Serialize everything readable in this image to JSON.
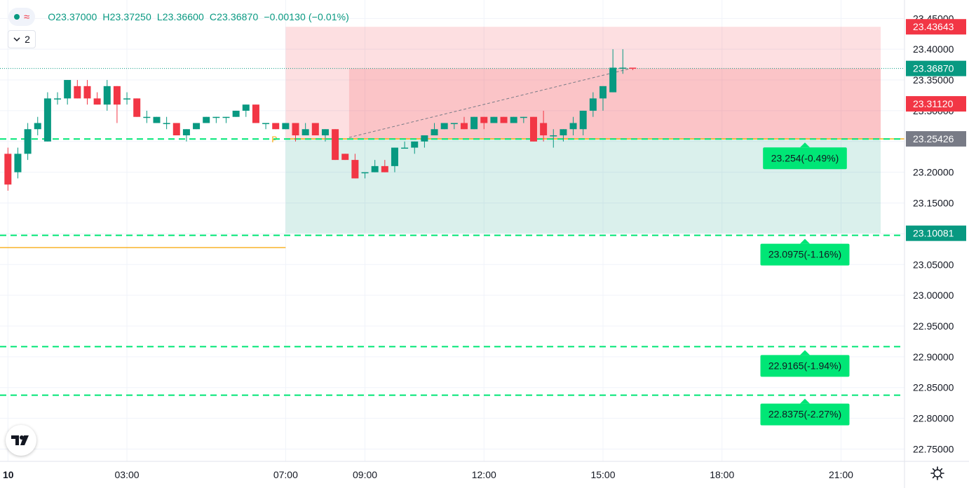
{
  "legend": {
    "open_text": "O23.37000",
    "high_text": "H23.37250",
    "low_text": "L23.36600",
    "close_text": "C23.36870",
    "change_text": "−0.00130 (−0.01%)",
    "indicator_count": "2"
  },
  "icons": {
    "status": "status-dot-icon",
    "wave": "wave-icon",
    "chevron": "chevron-down-icon",
    "logo": "tradingview-logo-icon",
    "settings": "gear-icon"
  },
  "colors": {
    "up": "#089981",
    "down": "#f23645",
    "target_line": "#00e676",
    "target_badge": "#00e676",
    "entry_line": "#f7a600",
    "stop_zone": "#f23645",
    "profit_zone": "#089981",
    "axis_entry_badge": "#787b86",
    "axis_last_badge": "#089981",
    "axis_stop_badge": "#f23645"
  },
  "chart_data": {
    "type": "candlestick",
    "y_axis": {
      "ticks": [
        22.75,
        22.8,
        22.85,
        22.9,
        22.95,
        23.0,
        23.05,
        23.1,
        23.15,
        23.2,
        23.25,
        23.3,
        23.35,
        23.4,
        23.45
      ],
      "tick_labels": [
        "22.75000",
        "22.80000",
        "22.85000",
        "22.90000",
        "22.95000",
        "23.00000",
        "23.05000",
        "23.10000",
        "23.15000",
        "23.20000",
        "23.25000",
        "23.30000",
        "23.35000",
        "23.40000",
        "23.45000"
      ],
      "range": [
        22.73,
        23.48
      ]
    },
    "x_axis": {
      "labels": [
        {
          "label": "10",
          "time": 0
        },
        {
          "label": "03:00",
          "time": 3
        },
        {
          "label": "07:00",
          "time": 7
        },
        {
          "label": "09:00",
          "time": 9
        },
        {
          "label": "12:00",
          "time": 12
        },
        {
          "label": "15:00",
          "time": 15
        },
        {
          "label": "18:00",
          "time": 18
        },
        {
          "label": "21:00",
          "time": 21
        }
      ],
      "range": [
        -0.2,
        22.6
      ]
    },
    "candles": [
      {
        "t": 0.0,
        "o": 23.23,
        "h": 23.24,
        "l": 23.17,
        "c": 23.18
      },
      {
        "t": 0.25,
        "o": 23.2,
        "h": 23.24,
        "l": 23.19,
        "c": 23.23
      },
      {
        "t": 0.5,
        "o": 23.23,
        "h": 23.28,
        "l": 23.22,
        "c": 23.27
      },
      {
        "t": 0.75,
        "o": 23.27,
        "h": 23.29,
        "l": 23.26,
        "c": 23.28
      },
      {
        "t": 1.0,
        "o": 23.25,
        "h": 23.33,
        "l": 23.25,
        "c": 23.32
      },
      {
        "t": 1.25,
        "o": 23.32,
        "h": 23.33,
        "l": 23.31,
        "c": 23.32
      },
      {
        "t": 1.5,
        "o": 23.32,
        "h": 23.35,
        "l": 23.31,
        "c": 23.35
      },
      {
        "t": 1.75,
        "o": 23.34,
        "h": 23.35,
        "l": 23.32,
        "c": 23.32
      },
      {
        "t": 2.0,
        "o": 23.34,
        "h": 23.35,
        "l": 23.31,
        "c": 23.32
      },
      {
        "t": 2.25,
        "o": 23.32,
        "h": 23.33,
        "l": 23.31,
        "c": 23.31
      },
      {
        "t": 2.5,
        "o": 23.31,
        "h": 23.35,
        "l": 23.3,
        "c": 23.34
      },
      {
        "t": 2.75,
        "o": 23.34,
        "h": 23.34,
        "l": 23.28,
        "c": 23.31
      },
      {
        "t": 3.0,
        "o": 23.32,
        "h": 23.33,
        "l": 23.31,
        "c": 23.32
      },
      {
        "t": 3.25,
        "o": 23.32,
        "h": 23.32,
        "l": 23.29,
        "c": 23.29
      },
      {
        "t": 3.5,
        "o": 23.29,
        "h": 23.3,
        "l": 23.28,
        "c": 23.29
      },
      {
        "t": 3.75,
        "o": 23.28,
        "h": 23.29,
        "l": 23.28,
        "c": 23.29
      },
      {
        "t": 4.0,
        "o": 23.28,
        "h": 23.29,
        "l": 23.27,
        "c": 23.28
      },
      {
        "t": 4.25,
        "o": 23.28,
        "h": 23.28,
        "l": 23.26,
        "c": 23.26
      },
      {
        "t": 4.5,
        "o": 23.26,
        "h": 23.27,
        "l": 23.25,
        "c": 23.27
      },
      {
        "t": 4.75,
        "o": 23.27,
        "h": 23.28,
        "l": 23.27,
        "c": 23.28
      },
      {
        "t": 5.0,
        "o": 23.28,
        "h": 23.29,
        "l": 23.28,
        "c": 23.29
      },
      {
        "t": 5.25,
        "o": 23.29,
        "h": 23.29,
        "l": 23.28,
        "c": 23.29
      },
      {
        "t": 5.5,
        "o": 23.29,
        "h": 23.29,
        "l": 23.28,
        "c": 23.29
      },
      {
        "t": 5.75,
        "o": 23.29,
        "h": 23.3,
        "l": 23.29,
        "c": 23.3
      },
      {
        "t": 6.0,
        "o": 23.3,
        "h": 23.31,
        "l": 23.29,
        "c": 23.31
      },
      {
        "t": 6.25,
        "o": 23.31,
        "h": 23.31,
        "l": 23.28,
        "c": 23.28
      },
      {
        "t": 6.5,
        "o": 23.28,
        "h": 23.28,
        "l": 23.27,
        "c": 23.28
      },
      {
        "t": 6.75,
        "o": 23.28,
        "h": 23.28,
        "l": 23.27,
        "c": 23.27
      },
      {
        "t": 7.0,
        "o": 23.27,
        "h": 23.28,
        "l": 23.27,
        "c": 23.28
      },
      {
        "t": 7.25,
        "o": 23.28,
        "h": 23.28,
        "l": 23.25,
        "c": 23.26
      },
      {
        "t": 7.5,
        "o": 23.26,
        "h": 23.28,
        "l": 23.26,
        "c": 23.27
      },
      {
        "t": 7.75,
        "o": 23.28,
        "h": 23.28,
        "l": 23.26,
        "c": 23.26
      },
      {
        "t": 8.0,
        "o": 23.26,
        "h": 23.27,
        "l": 23.25,
        "c": 23.27
      },
      {
        "t": 8.25,
        "o": 23.27,
        "h": 23.27,
        "l": 23.22,
        "c": 23.22
      },
      {
        "t": 8.5,
        "o": 23.23,
        "h": 23.23,
        "l": 23.22,
        "c": 23.22
      },
      {
        "t": 8.75,
        "o": 23.22,
        "h": 23.23,
        "l": 23.19,
        "c": 23.19
      },
      {
        "t": 9.0,
        "o": 23.2,
        "h": 23.2,
        "l": 23.19,
        "c": 23.2
      },
      {
        "t": 9.25,
        "o": 23.2,
        "h": 23.22,
        "l": 23.2,
        "c": 23.21
      },
      {
        "t": 9.5,
        "o": 23.21,
        "h": 23.22,
        "l": 23.2,
        "c": 23.2
      },
      {
        "t": 9.75,
        "o": 23.21,
        "h": 23.24,
        "l": 23.2,
        "c": 23.24
      },
      {
        "t": 10.0,
        "o": 23.24,
        "h": 23.25,
        "l": 23.24,
        "c": 23.24
      },
      {
        "t": 10.25,
        "o": 23.24,
        "h": 23.25,
        "l": 23.23,
        "c": 23.25
      },
      {
        "t": 10.5,
        "o": 23.25,
        "h": 23.26,
        "l": 23.24,
        "c": 23.26
      },
      {
        "t": 10.75,
        "o": 23.26,
        "h": 23.28,
        "l": 23.26,
        "c": 23.27
      },
      {
        "t": 11.0,
        "o": 23.27,
        "h": 23.28,
        "l": 23.27,
        "c": 23.28
      },
      {
        "t": 11.25,
        "o": 23.28,
        "h": 23.28,
        "l": 23.27,
        "c": 23.28
      },
      {
        "t": 11.5,
        "o": 23.28,
        "h": 23.29,
        "l": 23.27,
        "c": 23.27
      },
      {
        "t": 11.75,
        "o": 23.27,
        "h": 23.29,
        "l": 23.27,
        "c": 23.29
      },
      {
        "t": 12.0,
        "o": 23.29,
        "h": 23.29,
        "l": 23.27,
        "c": 23.28
      },
      {
        "t": 12.25,
        "o": 23.28,
        "h": 23.29,
        "l": 23.28,
        "c": 23.29
      },
      {
        "t": 12.5,
        "o": 23.29,
        "h": 23.29,
        "l": 23.28,
        "c": 23.28
      },
      {
        "t": 12.75,
        "o": 23.28,
        "h": 23.29,
        "l": 23.28,
        "c": 23.29
      },
      {
        "t": 13.0,
        "o": 23.29,
        "h": 23.29,
        "l": 23.28,
        "c": 23.29
      },
      {
        "t": 13.25,
        "o": 23.29,
        "h": 23.29,
        "l": 23.25,
        "c": 23.25
      },
      {
        "t": 13.5,
        "o": 23.28,
        "h": 23.3,
        "l": 23.25,
        "c": 23.26
      },
      {
        "t": 13.75,
        "o": 23.26,
        "h": 23.27,
        "l": 23.24,
        "c": 23.26
      },
      {
        "t": 14.0,
        "o": 23.26,
        "h": 23.27,
        "l": 23.25,
        "c": 23.27
      },
      {
        "t": 14.25,
        "o": 23.27,
        "h": 23.29,
        "l": 23.26,
        "c": 23.28
      },
      {
        "t": 14.5,
        "o": 23.27,
        "h": 23.3,
        "l": 23.26,
        "c": 23.3
      },
      {
        "t": 14.75,
        "o": 23.3,
        "h": 23.33,
        "l": 23.29,
        "c": 23.32
      },
      {
        "t": 15.0,
        "o": 23.32,
        "h": 23.34,
        "l": 23.3,
        "c": 23.34
      },
      {
        "t": 15.25,
        "o": 23.33,
        "h": 23.4,
        "l": 23.33,
        "c": 23.37
      },
      {
        "t": 15.5,
        "o": 23.37,
        "h": 23.4,
        "l": 23.36,
        "c": 23.37
      },
      {
        "t": 15.75,
        "o": 23.37,
        "h": 23.37,
        "l": 23.366,
        "c": 23.3687
      }
    ],
    "last_price": 23.3687,
    "position": {
      "start_time": 7.0,
      "end_time": 22.0,
      "entry": 23.25426,
      "stop": 23.43643,
      "target": 23.10081,
      "entry_time": 8.6,
      "current_time": 15.7,
      "marker": "P"
    },
    "reference_line": {
      "price": 23.0775,
      "start_time": -0.2,
      "end_time": 7.0
    },
    "target_levels": [
      {
        "price": 23.254,
        "label": "23.254(-0.49%)"
      },
      {
        "price": 23.0975,
        "label": "23.0975(-1.16%)"
      },
      {
        "price": 22.9165,
        "label": "22.9165(-1.94%)"
      },
      {
        "price": 22.8375,
        "label": "22.8375(-2.27%)"
      }
    ],
    "axis_badges": [
      {
        "price": 23.43643,
        "label": "23.43643",
        "kind": "stop"
      },
      {
        "price": 23.3687,
        "label": "23.36870",
        "kind": "last"
      },
      {
        "price": 23.3112,
        "label": "23.31120",
        "kind": "stop"
      },
      {
        "price": 23.25426,
        "label": "23.25426",
        "kind": "entry"
      },
      {
        "price": 23.10081,
        "label": "23.10081",
        "kind": "last"
      }
    ],
    "grid": true
  }
}
